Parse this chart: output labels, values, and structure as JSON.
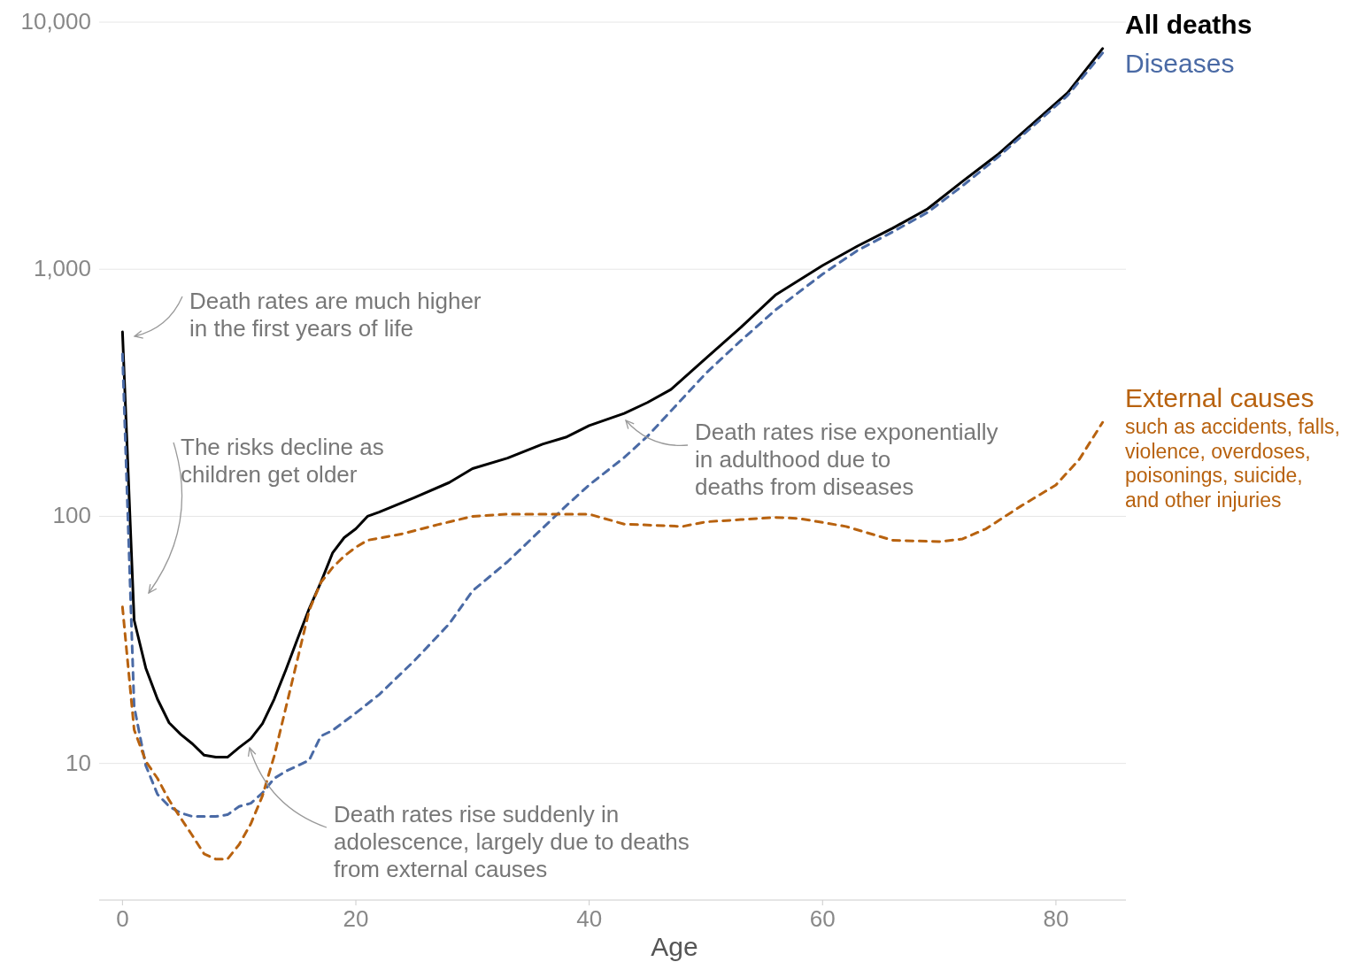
{
  "chart_data": {
    "type": "line",
    "xlabel": "Age",
    "log": "y",
    "grid": "y",
    "marker": "none",
    "xlim": [
      -2,
      86
    ],
    "xticks": [
      0,
      20,
      40,
      60,
      80
    ],
    "ylim": [
      2.8,
      10000
    ],
    "yticks": [
      10,
      100,
      {
        "value": 1000,
        "label": "1,000"
      },
      {
        "value": 10000,
        "label": "10,000"
      }
    ],
    "series": [
      {
        "name": "All deaths",
        "color": "#000000",
        "line_style": "solid",
        "x": [
          0,
          1,
          2,
          3,
          4,
          5,
          6,
          7,
          8,
          9,
          10,
          11,
          12,
          13,
          14,
          15,
          16,
          17,
          18,
          19,
          20,
          21,
          22,
          25,
          28,
          30,
          33,
          36,
          38,
          40,
          43,
          45,
          47,
          50,
          53,
          56,
          60,
          63,
          66,
          69,
          72,
          75,
          78,
          81,
          84
        ],
        "values": [
          558,
          38,
          24.3,
          18.2,
          14.6,
          13.1,
          12,
          10.8,
          10.6,
          10.6,
          11.6,
          12.6,
          14.5,
          18.2,
          23.9,
          31.9,
          42.3,
          54,
          71,
          82,
          89,
          100,
          104,
          119,
          137,
          156,
          172,
          196,
          209,
          233,
          261,
          289,
          326,
          436,
          582,
          789,
          1035,
          1241,
          1465,
          1755,
          2268,
          2907,
          3874,
          5176,
          7818
        ]
      },
      {
        "name": "Diseases",
        "color": "#4a6aa5",
        "line_style": "dashed",
        "x": [
          0,
          1,
          2,
          3,
          4,
          5,
          6,
          8,
          9,
          10,
          11,
          12,
          13,
          14,
          16,
          17,
          18,
          20,
          22,
          25,
          28,
          30,
          33,
          36,
          38,
          40,
          43,
          45,
          48,
          50,
          53,
          56,
          60,
          63,
          66,
          69,
          72,
          75,
          78,
          81,
          84
        ],
        "values": [
          454,
          17,
          9.8,
          7.5,
          6.7,
          6.3,
          6.1,
          6.1,
          6.2,
          6.7,
          6.9,
          7.6,
          8.7,
          9.3,
          10.3,
          12.9,
          13.6,
          16,
          19,
          26,
          36.7,
          49.9,
          65.5,
          89.5,
          110,
          134,
          173,
          211,
          300,
          379,
          514,
          686,
          955,
          1192,
          1416,
          1698,
          2176,
          2834,
          3784,
          5047,
          7499
        ]
      },
      {
        "name": "External causes",
        "color": "#b8620f",
        "line_style": "dashed",
        "x": [
          0,
          1,
          2,
          3,
          4,
          5,
          6,
          7,
          8,
          9,
          10,
          11,
          12,
          13,
          14,
          15,
          16,
          17,
          18,
          19,
          20,
          21,
          24,
          27,
          30,
          33,
          36,
          40,
          43,
          48,
          50,
          53,
          56,
          58,
          62,
          66,
          70,
          72,
          74,
          77,
          80,
          82,
          84
        ],
        "values": [
          43,
          13.7,
          10.2,
          8.7,
          7.1,
          6,
          5.1,
          4.3,
          4.1,
          4.1,
          4.7,
          5.7,
          7.4,
          10.7,
          16.8,
          26.4,
          41.6,
          54,
          62,
          69,
          75,
          80,
          85,
          92.5,
          100,
          102,
          102,
          102,
          93,
          91,
          95,
          97,
          99,
          98,
          91,
          80,
          79,
          81,
          89,
          110,
          134,
          170,
          240
        ]
      }
    ],
    "annotations": [
      "Death rates are much higher\nin the first years of life",
      "The risks decline as\nchildren get older",
      "Death rates rise exponentially\nin adulthood due to\ndeaths from diseases",
      "Death rates rise suddenly in\nadolescence, largely due to deaths\nfrom external causes",
      "such as accidents, falls,\nviolence, overdoses,\npoisonings, suicide,\nand other injuries"
    ]
  }
}
